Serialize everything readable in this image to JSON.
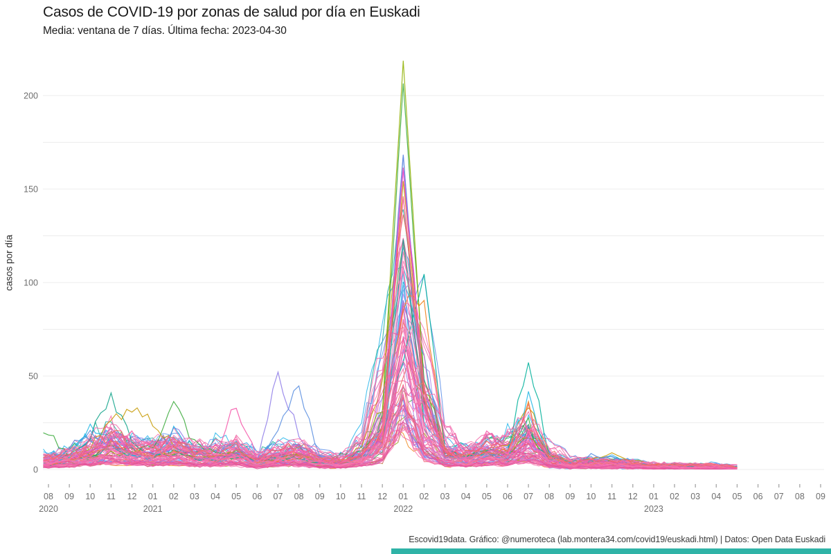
{
  "title": "Casos de COVID-19 por zonas de salud por día en Euskadi",
  "subtitle": "Media: ventana de 7 días. Última fecha: 2023-04-30",
  "footer": {
    "text": "Escovid19data. Gráfico: @numeroteca (lab.montera34.com/covid19/euskadi.html) | Datos: Open Data Euskadi",
    "accent_color": "#2fb3a7"
  },
  "chart_data": {
    "type": "line",
    "title": "Casos de COVID-19 por zonas de salud por día en Euskadi",
    "subtitle": "Media: ventana de 7 días. Última fecha: 2023-04-30",
    "xlabel": "",
    "ylabel": "casos por día",
    "ylim": [
      0,
      225
    ],
    "y_ticks": [
      0,
      50,
      100,
      150,
      200
    ],
    "grid_step": 25,
    "grid_color": "#ececec",
    "tick_color": "#ababab",
    "axis_text_color": "#6e6e6e",
    "legend": "none",
    "months": [
      "08",
      "09",
      "10",
      "11",
      "12",
      "01",
      "02",
      "03",
      "04",
      "05",
      "06",
      "07",
      "08",
      "09",
      "10",
      "11",
      "12",
      "01",
      "02",
      "03",
      "04",
      "05",
      "06",
      "07",
      "08",
      "09",
      "10",
      "11",
      "12",
      "01",
      "02",
      "03",
      "04",
      "05",
      "06",
      "07",
      "08",
      "09"
    ],
    "years": [
      {
        "label": "2020",
        "month_index": 0
      },
      {
        "label": "2021",
        "month_index": 5
      },
      {
        "label": "2022",
        "month_index": 17
      },
      {
        "label": "2023",
        "month_index": 29
      }
    ],
    "last_data_index": 33,
    "notes": "One line per health zone (unlabelled). Monthly sampled values, cases/day 7-day mean. Huge wave peaks Jan 2022 (max ~218), secondary waves Nov 2020, Feb 2021, May 2021, Jul 2021, Feb 2022, Jul 2022; near zero by 2023-04-30.",
    "series": [
      {
        "color": "#12a48b",
        "values": [
          3,
          8,
          18,
          42,
          14,
          8,
          10,
          9,
          7,
          8,
          4,
          6,
          8,
          5,
          4,
          9,
          22,
          120,
          35,
          8,
          6,
          10,
          8,
          20,
          6,
          3,
          4,
          3,
          3,
          2,
          2,
          2,
          2,
          1
        ]
      },
      {
        "color": "#3cab3c",
        "values": [
          20,
          6,
          8,
          12,
          10,
          12,
          37,
          14,
          9,
          11,
          4,
          7,
          9,
          6,
          4,
          10,
          28,
          202,
          50,
          9,
          7,
          11,
          9,
          24,
          7,
          3,
          4,
          4,
          3,
          2,
          2,
          2,
          2,
          1
        ]
      },
      {
        "color": "#8fb000",
        "values": [
          2,
          5,
          7,
          10,
          8,
          7,
          9,
          7,
          6,
          7,
          3,
          6,
          7,
          5,
          3,
          8,
          35,
          218,
          45,
          8,
          6,
          9,
          7,
          18,
          5,
          3,
          3,
          3,
          2,
          2,
          1,
          1,
          1,
          1
        ]
      },
      {
        "color": "#c79c08",
        "values": [
          3,
          7,
          12,
          28,
          30,
          26,
          12,
          8,
          7,
          9,
          4,
          6,
          8,
          5,
          4,
          12,
          48,
          150,
          40,
          10,
          7,
          10,
          12,
          33,
          8,
          4,
          6,
          8,
          5,
          3,
          2,
          2,
          2,
          1
        ]
      },
      {
        "color": "#ef7f18",
        "values": [
          2,
          5,
          8,
          14,
          10,
          8,
          9,
          6,
          5,
          8,
          3,
          5,
          7,
          4,
          3,
          7,
          20,
          90,
          88,
          9,
          6,
          8,
          10,
          33,
          7,
          3,
          4,
          4,
          3,
          2,
          2,
          1,
          1,
          1
        ]
      },
      {
        "color": "#00b09b",
        "values": [
          2,
          4,
          7,
          12,
          8,
          7,
          8,
          6,
          5,
          7,
          3,
          5,
          6,
          4,
          3,
          6,
          18,
          60,
          100,
          12,
          7,
          9,
          9,
          57,
          8,
          4,
          4,
          3,
          3,
          2,
          2,
          2,
          1,
          1
        ]
      },
      {
        "color": "#8f7de8",
        "values": [
          3,
          5,
          9,
          15,
          9,
          8,
          22,
          8,
          6,
          9,
          4,
          51,
          18,
          6,
          4,
          7,
          16,
          170,
          40,
          8,
          6,
          8,
          7,
          15,
          5,
          3,
          3,
          3,
          2,
          2,
          1,
          1,
          1,
          1
        ]
      },
      {
        "color": "#5a8ee0",
        "values": [
          2,
          12,
          22,
          13,
          8,
          7,
          12,
          7,
          5,
          8,
          4,
          20,
          44,
          7,
          4,
          6,
          14,
          165,
          38,
          7,
          5,
          8,
          6,
          14,
          5,
          3,
          8,
          6,
          3,
          2,
          2,
          1,
          1,
          1
        ]
      },
      {
        "color": "#f555a8",
        "values": [
          3,
          6,
          10,
          20,
          10,
          9,
          15,
          9,
          8,
          35,
          5,
          8,
          10,
          5,
          4,
          8,
          18,
          160,
          42,
          26,
          7,
          20,
          8,
          16,
          5,
          3,
          4,
          3,
          2,
          2,
          1,
          1,
          1,
          1
        ]
      },
      {
        "color": "#23b7e5",
        "values": [
          2,
          7,
          25,
          14,
          8,
          6,
          20,
          7,
          5,
          7,
          3,
          6,
          8,
          4,
          3,
          6,
          12,
          100,
          60,
          8,
          5,
          9,
          7,
          38,
          6,
          3,
          5,
          4,
          2,
          2,
          1,
          1,
          1,
          1
        ]
      },
      {
        "color": "#e34fd0",
        "values": [
          3,
          5,
          8,
          16,
          9,
          8,
          12,
          7,
          6,
          8,
          4,
          7,
          9,
          5,
          3,
          8,
          20,
          160,
          45,
          9,
          6,
          10,
          8,
          14,
          5,
          3,
          3,
          3,
          2,
          2,
          1,
          1,
          1,
          1
        ]
      },
      {
        "color": "#ee6155",
        "values": [
          2,
          5,
          9,
          14,
          9,
          7,
          10,
          7,
          5,
          7,
          3,
          6,
          7,
          4,
          3,
          7,
          22,
          150,
          35,
          8,
          5,
          9,
          7,
          13,
          4,
          3,
          3,
          3,
          2,
          2,
          1,
          1,
          1,
          1
        ]
      }
    ],
    "bulk_envelope": [
      5,
      7,
      10,
      16,
      11,
      9,
      13,
      9,
      8,
      12,
      4,
      9,
      11,
      5,
      4,
      8,
      18,
      110,
      30,
      9,
      7,
      12,
      9,
      22,
      6,
      3,
      4,
      4,
      3,
      2,
      2,
      2,
      2,
      1
    ],
    "bulk": {
      "count_mixed": 35,
      "count_pink_under": 20,
      "count_pink_over": 23,
      "amplitude_range": [
        0.25,
        1.45
      ],
      "palette_pink": [
        "#f668a8",
        "#ee61a0",
        "#fb74b0",
        "#e757a0",
        "#f584b6",
        "#ef6aa9",
        "#fa64a5",
        "#e34f97",
        "#f272ae",
        "#fc7fb3",
        "#f4766e",
        "#ee6a5f"
      ],
      "palette_mixed": [
        "#b57be0",
        "#9b7ce8",
        "#c36fd6",
        "#a988ef",
        "#8d7ce9",
        "#5f8fe8",
        "#4f9ae0",
        "#37a9ea",
        "#29b6ea",
        "#6aa3f0",
        "#1fae9b",
        "#3fae45",
        "#93ab1a",
        "#c9a119",
        "#ef8c28",
        "#ee6a5f",
        "#e060a8",
        "#f075b5"
      ]
    }
  }
}
